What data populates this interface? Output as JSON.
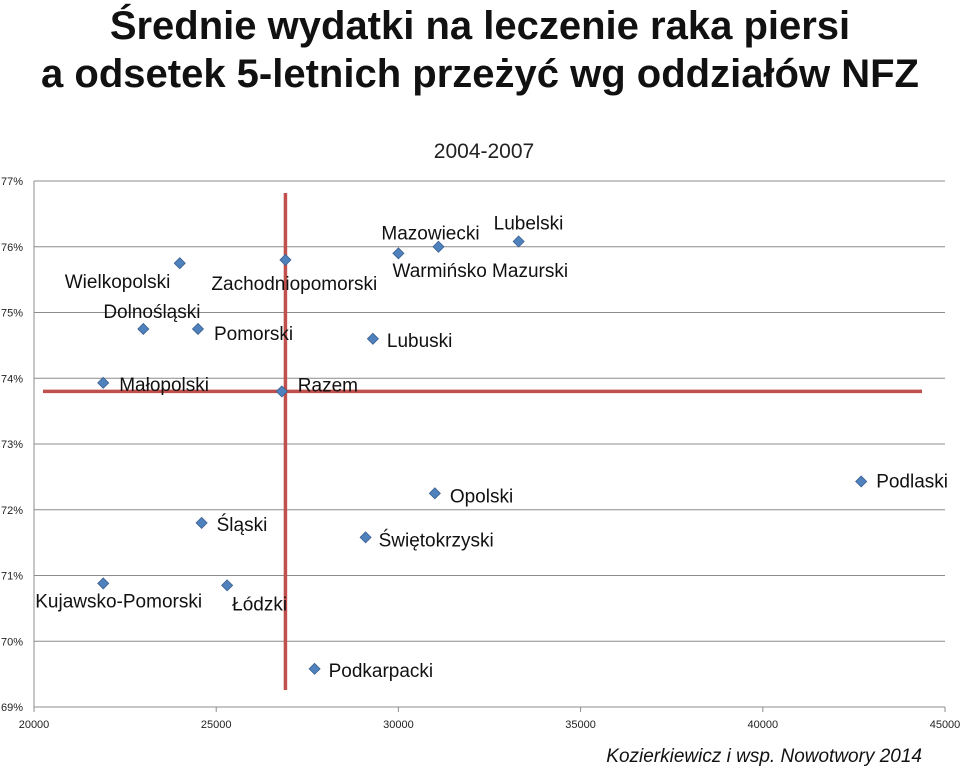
{
  "page": {
    "title_line1": "Średnie wydatki na leczenie raka piersi",
    "title_line2": "a odsetek 5-letnich przeżyć wg oddziałów NFZ",
    "source": "Kozierkiewicz i wsp. Nowotwory 2014"
  },
  "chart_data": {
    "type": "scatter",
    "subtitle": "2004-2007",
    "xlim": [
      20000,
      45000
    ],
    "ylim": [
      69,
      77
    ],
    "x_ticks": [
      20000,
      25000,
      30000,
      35000,
      40000,
      45000
    ],
    "x_tick_labels": [
      "20000",
      "25000",
      "30000",
      "35000",
      "40000",
      "45000"
    ],
    "y_ticks": [
      69,
      70,
      71,
      72,
      73,
      74,
      75,
      76,
      77
    ],
    "y_tick_labels": [
      "69%",
      "70%",
      "71%",
      "72%",
      "73%",
      "74%",
      "75%",
      "76%",
      "77%"
    ],
    "grid": "horizontal",
    "marker_color": "#4f81bd",
    "reference_line_color": "#c0504d",
    "reference_lines": {
      "x": 26900,
      "y": 73.8
    },
    "points": [
      {
        "label": "Wielkopolski",
        "x": 24000,
        "y": 75.75
      },
      {
        "label": "Zachodniopomorski",
        "x": 26900,
        "y": 75.8
      },
      {
        "label": "Dolnośląski",
        "x": 23000,
        "y": 74.75
      },
      {
        "label": "Pomorski",
        "x": 24500,
        "y": 74.75
      },
      {
        "label": "Mazowiecki",
        "x": 30000,
        "y": 75.9
      },
      {
        "label": "Lubelski",
        "x": 33300,
        "y": 76.08
      },
      {
        "label": "Warmińsko Mazurski",
        "x": 31100,
        "y": 76.0
      },
      {
        "label": "Lubuski",
        "x": 29300,
        "y": 74.6
      },
      {
        "label": "Małopolski",
        "x": 21900,
        "y": 73.93
      },
      {
        "label": "Razem",
        "x": 26800,
        "y": 73.8
      },
      {
        "label": "Opolski",
        "x": 31000,
        "y": 72.25
      },
      {
        "label": "Podlaski",
        "x": 42700,
        "y": 72.43
      },
      {
        "label": "Śląski",
        "x": 24600,
        "y": 71.8
      },
      {
        "label": "Świętokrzyski",
        "x": 29100,
        "y": 71.58
      },
      {
        "label": "Kujawsko-Pomorski",
        "x": 21900,
        "y": 70.88
      },
      {
        "label": "Łódzki",
        "x": 25300,
        "y": 70.85
      },
      {
        "label": "Podkarpacki",
        "x": 27700,
        "y": 69.58
      }
    ]
  }
}
